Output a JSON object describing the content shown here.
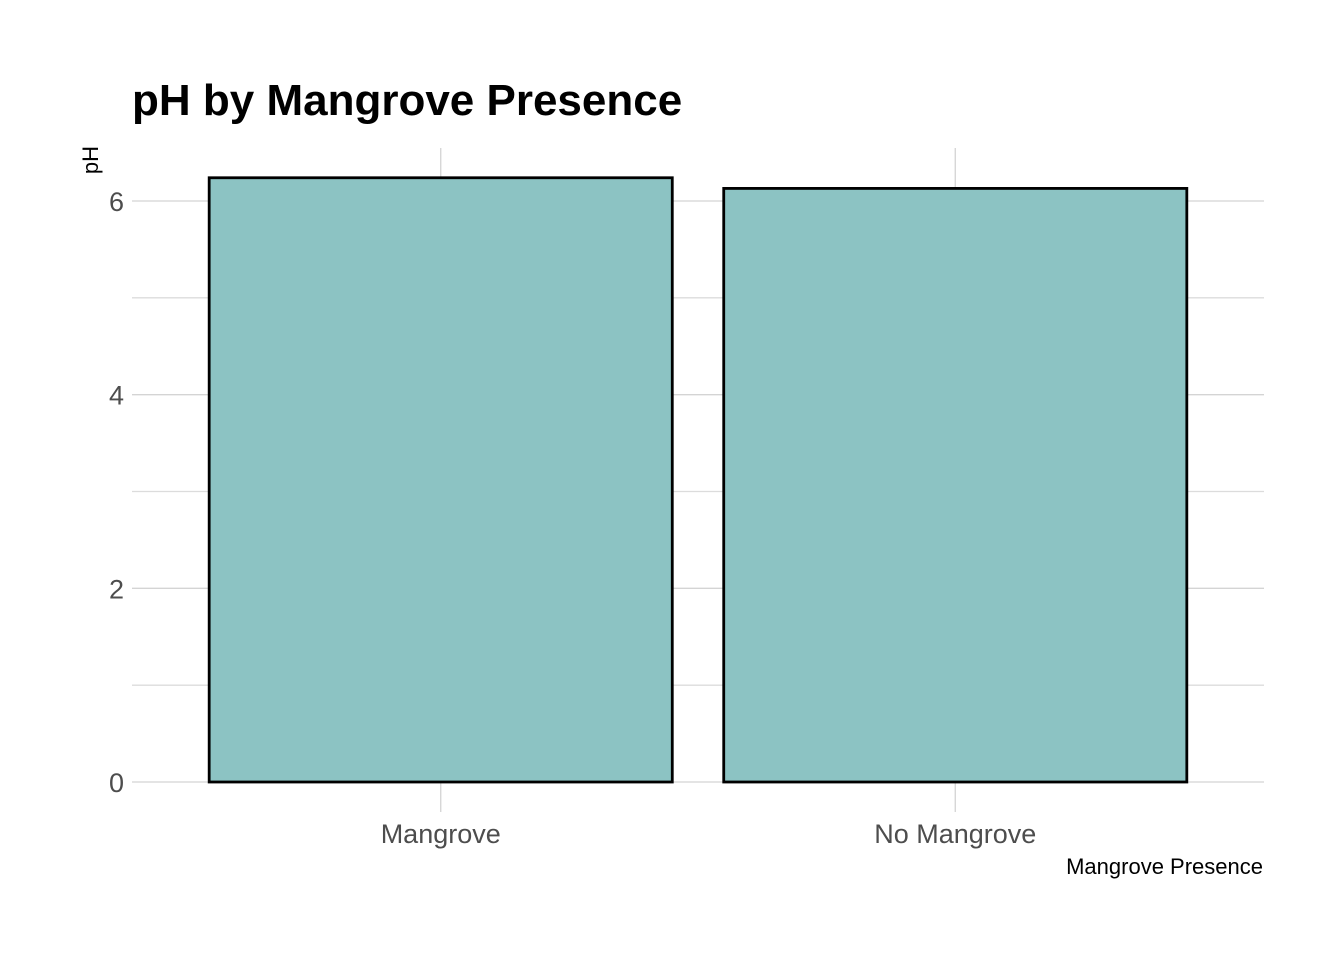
{
  "chart_data": {
    "type": "bar",
    "title": "pH by Mangrove Presence",
    "xlabel": "Mangrove Presence",
    "ylabel": "pH",
    "categories": [
      "Mangrove",
      "No Mangrove"
    ],
    "values": [
      6.24,
      6.13
    ],
    "ylim": [
      0,
      6.5
    ],
    "yticks": [
      0,
      2,
      4,
      6
    ],
    "yticks_minor": [
      1,
      3,
      5
    ],
    "grid": true,
    "legend": "none",
    "bar_fill": "#8cc3c3",
    "bar_outline": "#000000"
  }
}
